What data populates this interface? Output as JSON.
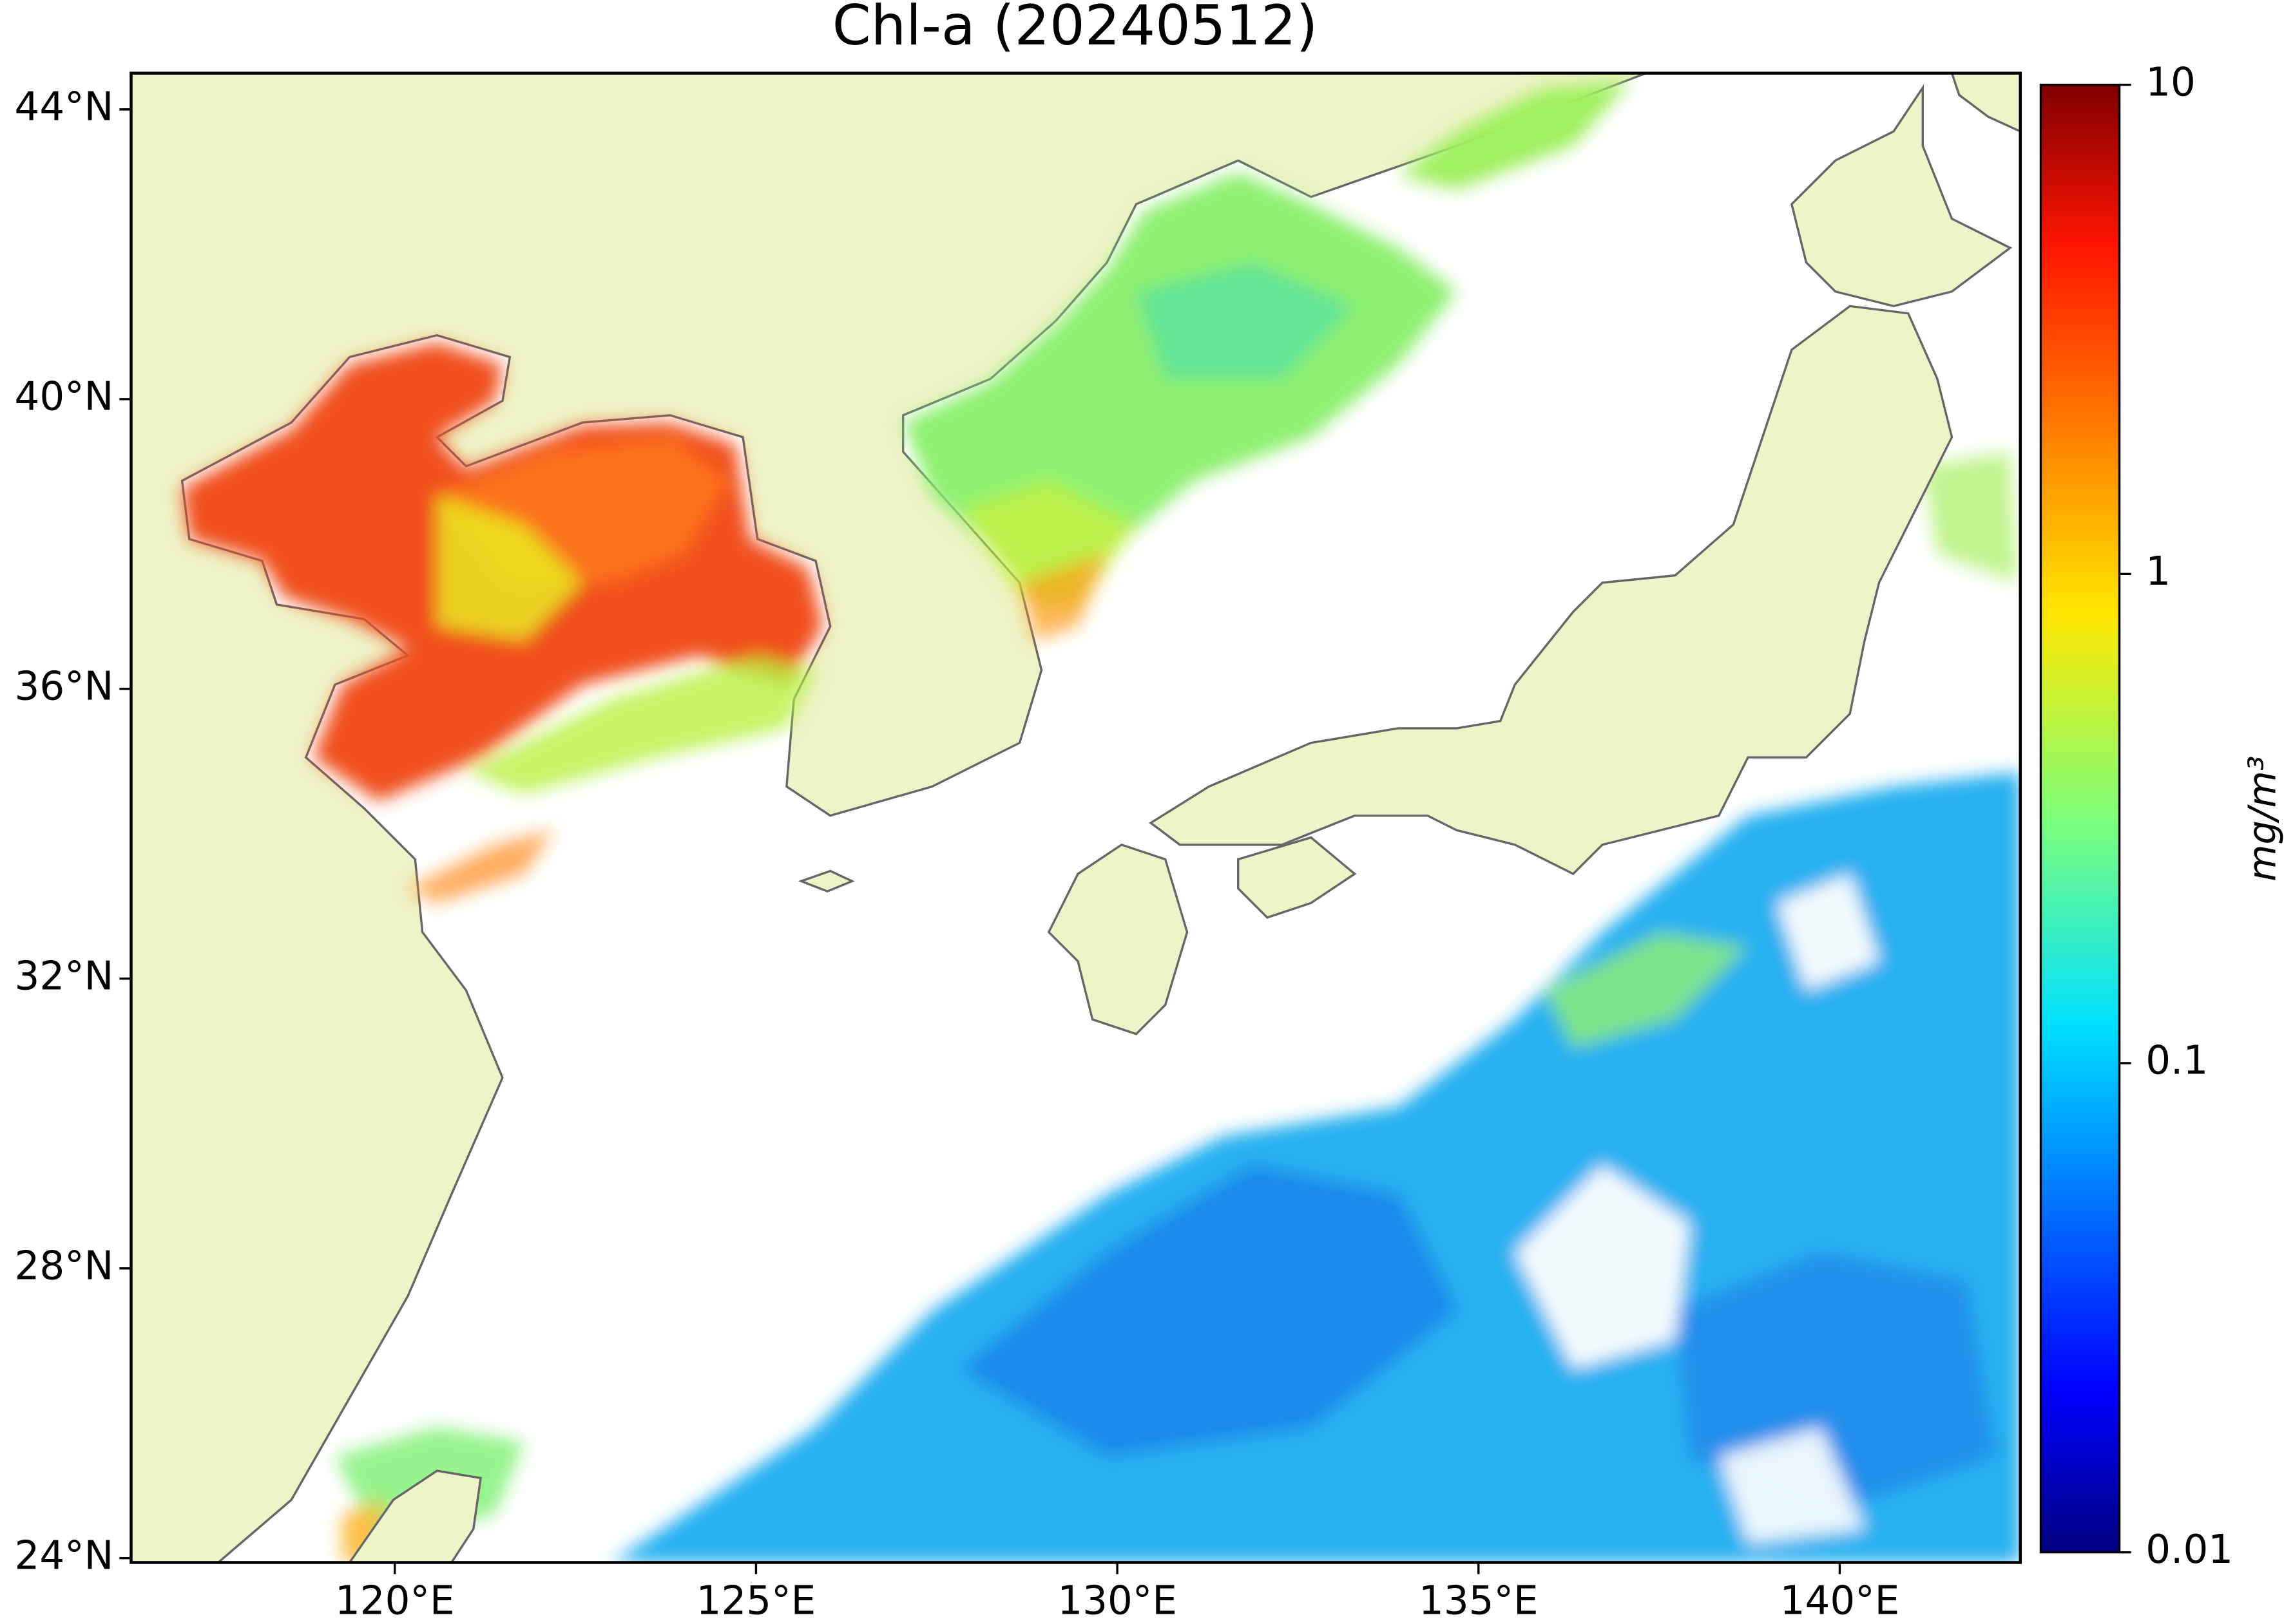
{
  "chart_data": {
    "type": "map",
    "title": "Chl-a (20240512)",
    "xlim": [
      116.35,
      142.5
    ],
    "ylim": [
      23.94,
      44.5
    ],
    "xticks": [
      {
        "value": 120,
        "label": "120°E"
      },
      {
        "value": 125,
        "label": "125°E"
      },
      {
        "value": 130,
        "label": "130°E"
      },
      {
        "value": 135,
        "label": "135°E"
      },
      {
        "value": 140,
        "label": "140°E"
      }
    ],
    "yticks": [
      {
        "value": 24,
        "label": "24°N"
      },
      {
        "value": 28,
        "label": "28°N"
      },
      {
        "value": 32,
        "label": "32°N"
      },
      {
        "value": 36,
        "label": "36°N"
      },
      {
        "value": 40,
        "label": "40°N"
      },
      {
        "value": 44,
        "label": "44°N"
      }
    ],
    "colorbar": {
      "label": "mg/m³",
      "lim": [
        0.01,
        10
      ],
      "log_scale": true,
      "colormap": "jet",
      "ticks": [
        0.01,
        0.1,
        1,
        10
      ]
    }
  }
}
